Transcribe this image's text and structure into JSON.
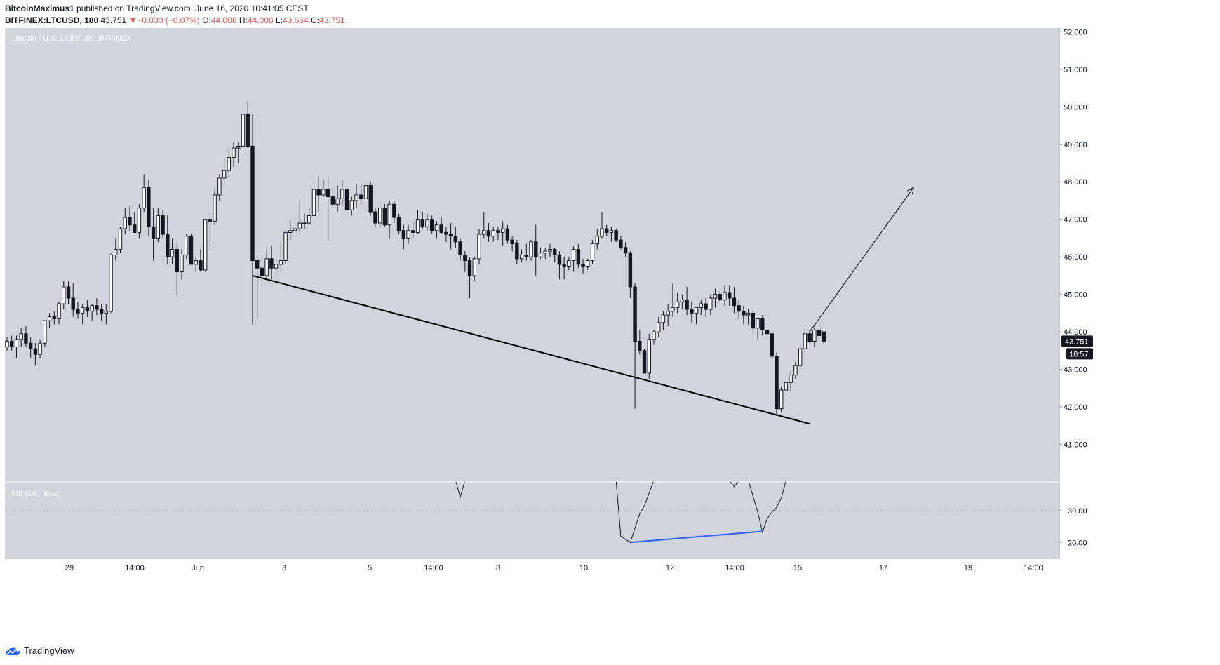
{
  "header": {
    "author": "BitcoinMaximus1",
    "published_text": "published on TradingView.com, June 16, 2020 10:41:05 CEST",
    "symbol": "BITFINEX:LTCUSD, 180",
    "last": "43.751",
    "change_arrow": "▼",
    "change": "−0.030 (−0.07%)",
    "o_label": "O:",
    "o_value": "44.008",
    "h_label": "H:",
    "h_value": "44.008",
    "l_label": "L:",
    "l_value": "43.664",
    "c_label": "C:",
    "c_value": "43.751"
  },
  "footer": {
    "brand": "TradingView"
  },
  "colors": {
    "pane_bg": "#d1d4dc",
    "up_body": "#ffffff",
    "down_body": "#131722",
    "wick": "#131722",
    "trendline": "#000000",
    "divergence": "#2962ff",
    "price_badge": "#131722",
    "axis_text": "#131722"
  },
  "chart_data": [
    {
      "type": "candlestick",
      "title": "Litecoin / U.S. Dollar, 3h, BITFINEX",
      "ylim": [
        40.0,
        52.1
      ],
      "y_ticks": [
        "52.000",
        "51.000",
        "50.000",
        "49.000",
        "48.000",
        "47.000",
        "46.000",
        "45.000",
        "44.000",
        "43.000",
        "42.000",
        "41.000"
      ],
      "x_tick_labels": [
        "29",
        "14:00",
        "Jun",
        "3",
        "5",
        "14:00",
        "8",
        "10",
        "12",
        "14:00",
        "15",
        "17",
        "19",
        "14:00"
      ],
      "last_price": "43.751",
      "countdown": "18:57",
      "candles_ohlc": [
        [
          43.6,
          43.85,
          43.5,
          43.75
        ],
        [
          43.75,
          43.9,
          43.5,
          43.6
        ],
        [
          43.6,
          43.9,
          43.3,
          43.8
        ],
        [
          43.8,
          44.1,
          43.6,
          43.95
        ],
        [
          43.95,
          44.15,
          43.6,
          43.7
        ],
        [
          43.7,
          43.85,
          43.3,
          43.55
        ],
        [
          43.55,
          43.7,
          43.1,
          43.4
        ],
        [
          43.4,
          43.8,
          43.3,
          43.7
        ],
        [
          43.7,
          44.3,
          43.6,
          44.3
        ],
        [
          44.3,
          44.5,
          44.1,
          44.4
        ],
        [
          44.4,
          44.55,
          44.2,
          44.35
        ],
        [
          44.35,
          44.8,
          44.2,
          44.75
        ],
        [
          44.75,
          45.35,
          44.6,
          45.2
        ],
        [
          45.2,
          45.35,
          44.75,
          44.9
        ],
        [
          44.9,
          45.3,
          44.4,
          44.6
        ],
        [
          44.6,
          44.8,
          44.35,
          44.5
        ],
        [
          44.5,
          44.75,
          44.2,
          44.65
        ],
        [
          44.65,
          44.85,
          44.4,
          44.55
        ],
        [
          44.55,
          44.75,
          44.3,
          44.7
        ],
        [
          44.7,
          44.9,
          44.45,
          44.6
        ],
        [
          44.6,
          44.75,
          44.3,
          44.5
        ],
        [
          44.5,
          44.75,
          44.2,
          44.55
        ],
        [
          44.55,
          46.1,
          44.5,
          46.05
        ],
        [
          46.05,
          46.5,
          45.9,
          46.2
        ],
        [
          46.2,
          46.8,
          46.1,
          46.75
        ],
        [
          46.75,
          47.3,
          46.6,
          47.05
        ],
        [
          47.05,
          47.35,
          46.7,
          46.85
        ],
        [
          46.85,
          47.2,
          46.65,
          46.65
        ],
        [
          46.65,
          47.4,
          46.5,
          47.3
        ],
        [
          47.3,
          48.2,
          47.2,
          47.85
        ],
        [
          47.85,
          48.05,
          46.55,
          46.8
        ],
        [
          46.8,
          47.3,
          45.9,
          46.5
        ],
        [
          46.5,
          47.3,
          46.4,
          47.1
        ],
        [
          47.1,
          47.25,
          46.5,
          46.6
        ],
        [
          46.6,
          47.1,
          45.8,
          46.0
        ],
        [
          46.0,
          46.5,
          45.8,
          46.2
        ],
        [
          46.2,
          46.4,
          45.0,
          45.6
        ],
        [
          45.6,
          46.2,
          45.4,
          46.05
        ],
        [
          46.05,
          46.6,
          45.95,
          46.55
        ],
        [
          46.55,
          46.6,
          45.85,
          45.8
        ],
        [
          45.8,
          46.0,
          45.6,
          45.9
        ],
        [
          45.9,
          46.2,
          45.6,
          45.65
        ],
        [
          45.65,
          47.0,
          45.6,
          47.0
        ],
        [
          47.0,
          47.15,
          46.2,
          46.95
        ],
        [
          46.95,
          47.8,
          46.85,
          47.65
        ],
        [
          47.65,
          48.2,
          47.5,
          48.1
        ],
        [
          48.1,
          48.6,
          47.9,
          48.3
        ],
        [
          48.3,
          48.85,
          48.1,
          48.65
        ],
        [
          48.65,
          49.05,
          48.4,
          48.9
        ],
        [
          48.9,
          49.05,
          48.5,
          48.95
        ],
        [
          48.95,
          49.85,
          48.8,
          49.8
        ],
        [
          49.8,
          50.15,
          48.9,
          48.95
        ],
        [
          48.95,
          49.8,
          44.2,
          45.9
        ],
        [
          45.9,
          46.05,
          44.35,
          45.7
        ],
        [
          45.7,
          46.05,
          45.3,
          45.5
        ],
        [
          45.5,
          46.2,
          45.4,
          45.95
        ],
        [
          45.95,
          46.3,
          45.4,
          45.7
        ],
        [
          45.7,
          46.0,
          45.5,
          45.8
        ],
        [
          45.8,
          46.35,
          45.6,
          45.9
        ],
        [
          45.9,
          46.7,
          45.8,
          46.65
        ],
        [
          46.65,
          47.0,
          46.45,
          46.7
        ],
        [
          46.7,
          47.1,
          46.6,
          46.75
        ],
        [
          46.75,
          47.5,
          46.6,
          46.9
        ],
        [
          46.9,
          47.15,
          46.75,
          46.9
        ],
        [
          46.9,
          47.3,
          46.85,
          47.1
        ],
        [
          47.1,
          48.0,
          47.05,
          47.8
        ],
        [
          47.8,
          48.15,
          47.2,
          47.65
        ],
        [
          47.65,
          48.05,
          47.6,
          47.8
        ],
        [
          47.8,
          48.1,
          46.4,
          47.6
        ],
        [
          47.6,
          47.8,
          47.3,
          47.4
        ],
        [
          47.4,
          47.9,
          47.2,
          47.55
        ],
        [
          47.55,
          48.05,
          47.35,
          47.8
        ],
        [
          47.8,
          47.9,
          47.0,
          47.25
        ],
        [
          47.25,
          47.6,
          47.1,
          47.5
        ],
        [
          47.5,
          47.95,
          47.3,
          47.65
        ],
        [
          47.65,
          47.95,
          47.4,
          47.55
        ],
        [
          47.55,
          48.05,
          47.2,
          47.9
        ],
        [
          47.9,
          48.0,
          47.1,
          47.2
        ],
        [
          47.2,
          47.3,
          46.8,
          46.9
        ],
        [
          46.9,
          47.45,
          46.8,
          47.3
        ],
        [
          47.3,
          47.4,
          46.8,
          46.85
        ],
        [
          46.85,
          47.5,
          46.5,
          47.4
        ],
        [
          47.4,
          47.5,
          46.9,
          47.05
        ],
        [
          47.05,
          47.15,
          46.6,
          46.7
        ],
        [
          46.7,
          46.85,
          46.2,
          46.5
        ],
        [
          46.5,
          46.85,
          46.35,
          46.7
        ],
        [
          46.7,
          46.95,
          46.5,
          46.65
        ],
        [
          46.65,
          47.25,
          46.6,
          47.0
        ],
        [
          47.0,
          47.2,
          46.75,
          46.8
        ],
        [
          46.8,
          47.15,
          46.7,
          47.0
        ],
        [
          47.0,
          47.1,
          46.6,
          46.7
        ],
        [
          46.7,
          46.95,
          46.5,
          46.85
        ],
        [
          46.85,
          47.05,
          46.6,
          46.65
        ],
        [
          46.65,
          46.8,
          46.4,
          46.6
        ],
        [
          46.6,
          46.9,
          46.2,
          46.55
        ],
        [
          46.55,
          46.8,
          46.25,
          46.4
        ],
        [
          46.4,
          46.5,
          45.9,
          46.05
        ],
        [
          46.05,
          46.15,
          45.6,
          45.9
        ],
        [
          45.9,
          46.0,
          44.9,
          45.5
        ],
        [
          45.5,
          46.0,
          45.35,
          45.95
        ],
        [
          45.95,
          46.75,
          45.8,
          46.6
        ],
        [
          46.6,
          47.2,
          46.5,
          46.7
        ],
        [
          46.7,
          46.9,
          46.4,
          46.55
        ],
        [
          46.55,
          46.8,
          46.4,
          46.7
        ],
        [
          46.7,
          46.8,
          46.45,
          46.65
        ],
        [
          46.65,
          46.95,
          46.3,
          46.75
        ],
        [
          46.75,
          46.85,
          46.35,
          46.45
        ],
        [
          46.45,
          46.55,
          46.15,
          46.35
        ],
        [
          46.35,
          46.45,
          45.8,
          45.95
        ],
        [
          45.95,
          46.2,
          45.85,
          46.05
        ],
        [
          46.05,
          46.35,
          45.9,
          46.0
        ],
        [
          46.0,
          46.45,
          45.9,
          46.4
        ],
        [
          46.4,
          46.85,
          45.5,
          46.0
        ],
        [
          46.0,
          46.25,
          45.95,
          46.1
        ],
        [
          46.1,
          46.25,
          45.95,
          46.15
        ],
        [
          46.15,
          46.35,
          46.0,
          46.2
        ],
        [
          46.2,
          46.25,
          45.85,
          46.05
        ],
        [
          46.05,
          46.15,
          45.4,
          45.8
        ],
        [
          45.8,
          46.0,
          45.4,
          45.75
        ],
        [
          45.75,
          46.0,
          45.65,
          45.9
        ],
        [
          45.9,
          46.3,
          45.6,
          46.2
        ],
        [
          46.2,
          46.35,
          45.7,
          45.8
        ],
        [
          45.8,
          45.95,
          45.55,
          45.75
        ],
        [
          45.75,
          45.95,
          45.65,
          45.9
        ],
        [
          45.9,
          46.45,
          45.8,
          46.35
        ],
        [
          46.35,
          46.75,
          46.2,
          46.55
        ],
        [
          46.55,
          47.2,
          46.5,
          46.75
        ],
        [
          46.75,
          46.85,
          46.55,
          46.65
        ],
        [
          46.65,
          46.8,
          46.4,
          46.7
        ],
        [
          46.7,
          46.75,
          46.4,
          46.45
        ],
        [
          46.45,
          46.55,
          46.2,
          46.25
        ],
        [
          46.25,
          46.4,
          46.0,
          46.1
        ],
        [
          46.1,
          46.15,
          44.9,
          45.2
        ],
        [
          45.2,
          45.3,
          41.95,
          43.75
        ],
        [
          43.75,
          44.05,
          43.4,
          43.5
        ],
        [
          43.5,
          43.55,
          43.0,
          42.9
        ],
        [
          42.9,
          43.95,
          42.75,
          43.8
        ],
        [
          43.8,
          44.05,
          43.65,
          44.0
        ],
        [
          44.0,
          44.4,
          43.85,
          44.25
        ],
        [
          44.25,
          44.55,
          44.05,
          44.45
        ],
        [
          44.45,
          44.75,
          44.15,
          44.55
        ],
        [
          44.55,
          45.3,
          44.4,
          44.65
        ],
        [
          44.65,
          45.05,
          44.5,
          44.8
        ],
        [
          44.8,
          45.0,
          44.6,
          44.85
        ],
        [
          44.85,
          45.2,
          44.45,
          44.6
        ],
        [
          44.6,
          44.8,
          44.25,
          44.5
        ],
        [
          44.5,
          44.65,
          44.2,
          44.65
        ],
        [
          44.65,
          44.85,
          44.45,
          44.75
        ],
        [
          44.75,
          44.9,
          44.4,
          44.6
        ],
        [
          44.6,
          45.0,
          44.45,
          44.9
        ],
        [
          44.9,
          45.15,
          44.65,
          45.0
        ],
        [
          45.0,
          45.1,
          44.8,
          44.85
        ],
        [
          44.85,
          45.25,
          44.7,
          45.05
        ],
        [
          45.05,
          45.25,
          44.7,
          44.9
        ],
        [
          44.9,
          45.2,
          44.5,
          44.7
        ],
        [
          44.7,
          44.85,
          44.35,
          44.55
        ],
        [
          44.55,
          44.7,
          44.2,
          44.45
        ],
        [
          44.45,
          44.6,
          44.2,
          44.5
        ],
        [
          44.5,
          44.55,
          44.0,
          44.1
        ],
        [
          44.1,
          44.3,
          43.8,
          44.35
        ],
        [
          44.35,
          44.45,
          43.9,
          44.05
        ],
        [
          44.05,
          44.2,
          43.75,
          43.95
        ],
        [
          43.95,
          44.0,
          43.3,
          43.35
        ],
        [
          43.35,
          43.45,
          41.8,
          41.95
        ],
        [
          41.95,
          42.55,
          41.85,
          42.45
        ],
        [
          42.45,
          42.8,
          42.3,
          42.65
        ],
        [
          42.65,
          42.95,
          42.4,
          42.85
        ],
        [
          42.85,
          43.2,
          42.75,
          43.1
        ],
        [
          43.1,
          43.65,
          43.0,
          43.55
        ],
        [
          43.55,
          44.05,
          43.45,
          43.95
        ],
        [
          43.95,
          44.05,
          43.7,
          43.75
        ],
        [
          43.75,
          44.1,
          43.6,
          44.05
        ],
        [
          44.05,
          44.25,
          43.85,
          43.9
        ],
        [
          44.0,
          44.0,
          43.66,
          43.75
        ]
      ],
      "annotations": {
        "trendline": [
          [
            52,
            45.5
          ],
          [
            170,
            41.55
          ]
        ],
        "arrow": [
          [
            170,
            44.0
          ],
          [
            192,
            47.85
          ]
        ]
      }
    },
    {
      "type": "line",
      "title": "RSI (14, close)",
      "ylim": [
        15,
        39
      ],
      "y_ticks": [
        "30.00",
        "20.00"
      ],
      "reference_line": 30,
      "segments": [
        [
          [
            95,
            39.5
          ],
          [
            96,
            34.2
          ],
          [
            97,
            39.5
          ]
        ],
        [
          [
            129,
            39.5
          ],
          [
            130,
            22.0
          ],
          [
            132,
            20.0
          ],
          [
            133,
            24.5
          ],
          [
            134,
            29.0
          ],
          [
            135,
            31.5
          ],
          [
            136,
            35.5
          ],
          [
            137,
            39.5
          ]
        ],
        [
          [
            153,
            39.5
          ],
          [
            154,
            37.5
          ],
          [
            155,
            39.5
          ]
        ],
        [
          [
            157,
            39.5
          ],
          [
            159,
            29.5
          ],
          [
            160,
            23.2
          ],
          [
            161,
            27.5
          ],
          [
            162,
            29.5
          ],
          [
            163,
            31.0
          ],
          [
            164,
            34.0
          ],
          [
            165,
            39.5
          ]
        ]
      ],
      "divergence": [
        [
          132,
          20.0
        ],
        [
          160,
          23.5
        ]
      ]
    }
  ]
}
